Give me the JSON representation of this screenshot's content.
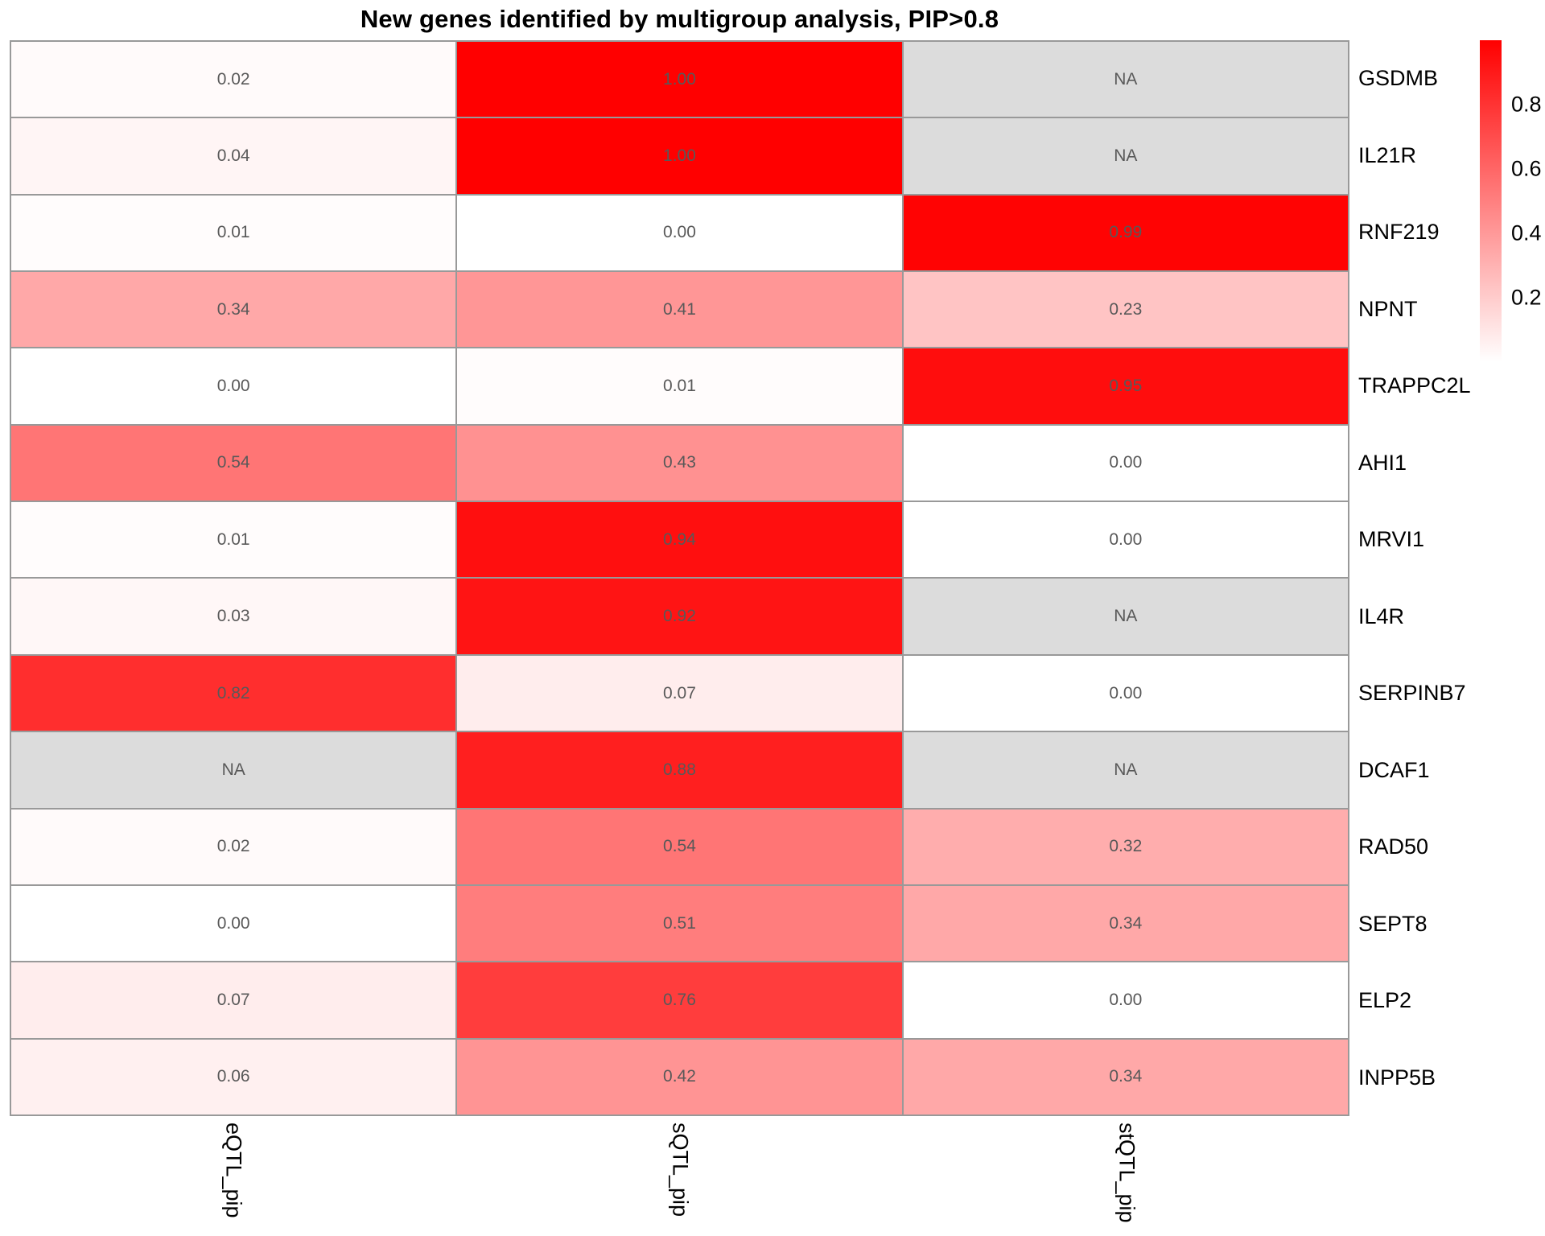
{
  "title": "New genes identified by multigroup analysis, PIP>0.8",
  "chart_data": {
    "type": "heatmap",
    "title": "New genes identified by multigroup analysis, PIP>0.8",
    "columns": [
      "eQTL_pip",
      "sQTL_pip",
      "stQTL_pip"
    ],
    "rows": [
      "GSDMB",
      "IL21R",
      "RNF219",
      "NPNT",
      "TRAPPC2L",
      "AHI1",
      "MRVI1",
      "IL4R",
      "SERPINB7",
      "DCAF1",
      "RAD50",
      "SEPT8",
      "ELP2",
      "INPP5B"
    ],
    "values": [
      [
        0.02,
        1.0,
        null
      ],
      [
        0.04,
        1.0,
        null
      ],
      [
        0.01,
        0.0,
        0.99
      ],
      [
        0.34,
        0.41,
        0.23
      ],
      [
        0.0,
        0.01,
        0.95
      ],
      [
        0.54,
        0.43,
        0.0
      ],
      [
        0.01,
        0.94,
        0.0
      ],
      [
        0.03,
        0.92,
        null
      ],
      [
        0.82,
        0.07,
        0.0
      ],
      [
        null,
        0.88,
        null
      ],
      [
        0.02,
        0.54,
        0.32
      ],
      [
        0.0,
        0.51,
        0.34
      ],
      [
        0.07,
        0.76,
        0.0
      ],
      [
        0.06,
        0.42,
        0.34
      ]
    ],
    "na_label": "NA",
    "value_decimals": 2,
    "colorscale": {
      "min_value": 0,
      "max_value": 1,
      "min_color": "#FFFFFF",
      "max_color": "#FF0000",
      "na_color": "#DCDCDC"
    },
    "legend": {
      "position": "right",
      "ticks": [
        0.8,
        0.6,
        0.4,
        0.2
      ]
    },
    "style": {
      "grid_line_color": "#999999",
      "cell_text_color": "#595959",
      "label_text_color": "#000000"
    },
    "row_label_position": "right",
    "column_label_position": "bottom",
    "grid": true
  }
}
